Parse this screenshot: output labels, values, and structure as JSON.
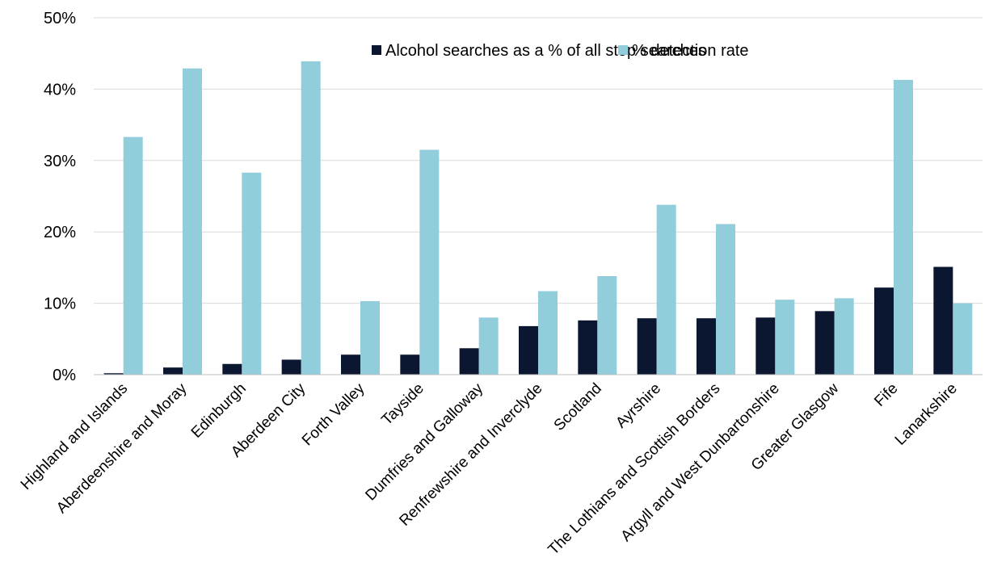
{
  "chart_data": {
    "type": "bar",
    "categories": [
      "Highland and Islands",
      "Aberdeenshire and Moray",
      "Edinburgh",
      "Aberdeen City",
      "Forth Valley",
      "Tayside",
      "Dumfries and Galloway",
      "Renfrewshire and Inverclyde",
      "Scotland",
      "Ayrshire",
      "The Lothians and Scottish Borders",
      "Argyll and West Dunbartonshire",
      "Greater Glasgow",
      "Fife",
      "Lanarkshire"
    ],
    "series": [
      {
        "name": "Alcohol searches as a % of all stop searches",
        "color": "#0b1630",
        "values": [
          0.2,
          1.0,
          1.5,
          2.1,
          2.8,
          2.8,
          3.7,
          6.8,
          7.6,
          7.9,
          7.9,
          8.0,
          8.9,
          12.2,
          15.1
        ]
      },
      {
        "name": "% detection rate",
        "color": "#92cddc",
        "values": [
          33.3,
          42.9,
          28.3,
          43.9,
          10.3,
          31.5,
          8.0,
          11.7,
          13.8,
          23.8,
          21.1,
          10.5,
          10.7,
          41.3,
          10.0
        ]
      }
    ],
    "y_ticks": [
      "0%",
      "10%",
      "20%",
      "30%",
      "40%",
      "50%"
    ],
    "ylim": [
      0,
      50
    ],
    "grid": true,
    "legend_position": "top-right",
    "title": "",
    "xlabel": "",
    "ylabel": ""
  }
}
